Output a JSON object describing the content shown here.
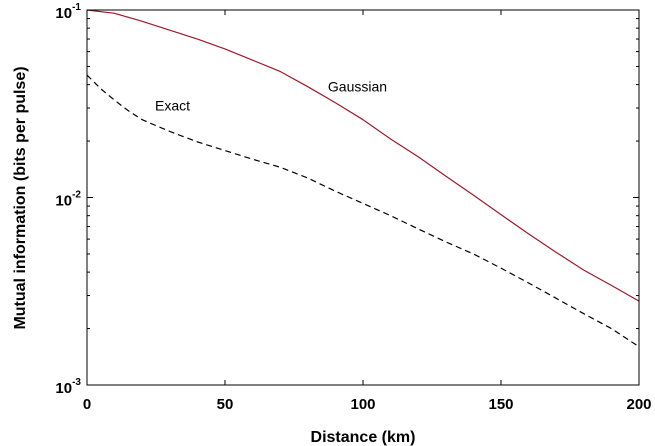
{
  "chart_data": {
    "type": "line",
    "title": "",
    "xlabel": "Distance (km)",
    "ylabel": "Mutual information (bits per pulse)",
    "xlim": [
      0,
      200
    ],
    "ylim": [
      0.001,
      0.1
    ],
    "yscale": "log",
    "grid": false,
    "x_ticks": [
      {
        "value": 0,
        "label": "0"
      },
      {
        "value": 50,
        "label": "50"
      },
      {
        "value": 100,
        "label": "100"
      },
      {
        "value": 150,
        "label": "150"
      },
      {
        "value": 200,
        "label": "200"
      }
    ],
    "y_ticks": [
      {
        "value": 0.1,
        "base": "10",
        "exp": "-1"
      },
      {
        "value": 0.01,
        "base": "10",
        "exp": "-2"
      },
      {
        "value": 0.001,
        "base": "10",
        "exp": "-3"
      }
    ],
    "series": [
      {
        "name": "Gaussian",
        "color": "#a0182a",
        "style": "solid",
        "x": [
          0,
          10,
          20,
          30,
          40,
          50,
          60,
          70,
          80,
          90,
          100,
          110,
          120,
          130,
          140,
          150,
          160,
          170,
          180,
          190,
          200
        ],
        "y": [
          0.105,
          0.096,
          0.087,
          0.078,
          0.07,
          0.062,
          0.054,
          0.047,
          0.039,
          0.032,
          0.026,
          0.0205,
          0.0165,
          0.013,
          0.0103,
          0.0081,
          0.0064,
          0.0051,
          0.0041,
          0.0034,
          0.0028
        ]
      },
      {
        "name": "Exact",
        "color": "#000000",
        "style": "dashed",
        "x": [
          0,
          5,
          10,
          15,
          20,
          30,
          40,
          50,
          60,
          70,
          80,
          90,
          100,
          110,
          120,
          130,
          140,
          150,
          160,
          170,
          180,
          190,
          200
        ],
        "y": [
          0.045,
          0.038,
          0.033,
          0.029,
          0.026,
          0.0225,
          0.0198,
          0.0178,
          0.016,
          0.0145,
          0.0127,
          0.0108,
          0.0093,
          0.008,
          0.0068,
          0.0058,
          0.005,
          0.0042,
          0.0035,
          0.0029,
          0.0024,
          0.002,
          0.0016
        ]
      }
    ],
    "annotations": [
      {
        "text": "Gaussian",
        "x": 98,
        "y": 0.039
      },
      {
        "text": "Exact",
        "x": 31,
        "y": 0.031
      }
    ]
  }
}
